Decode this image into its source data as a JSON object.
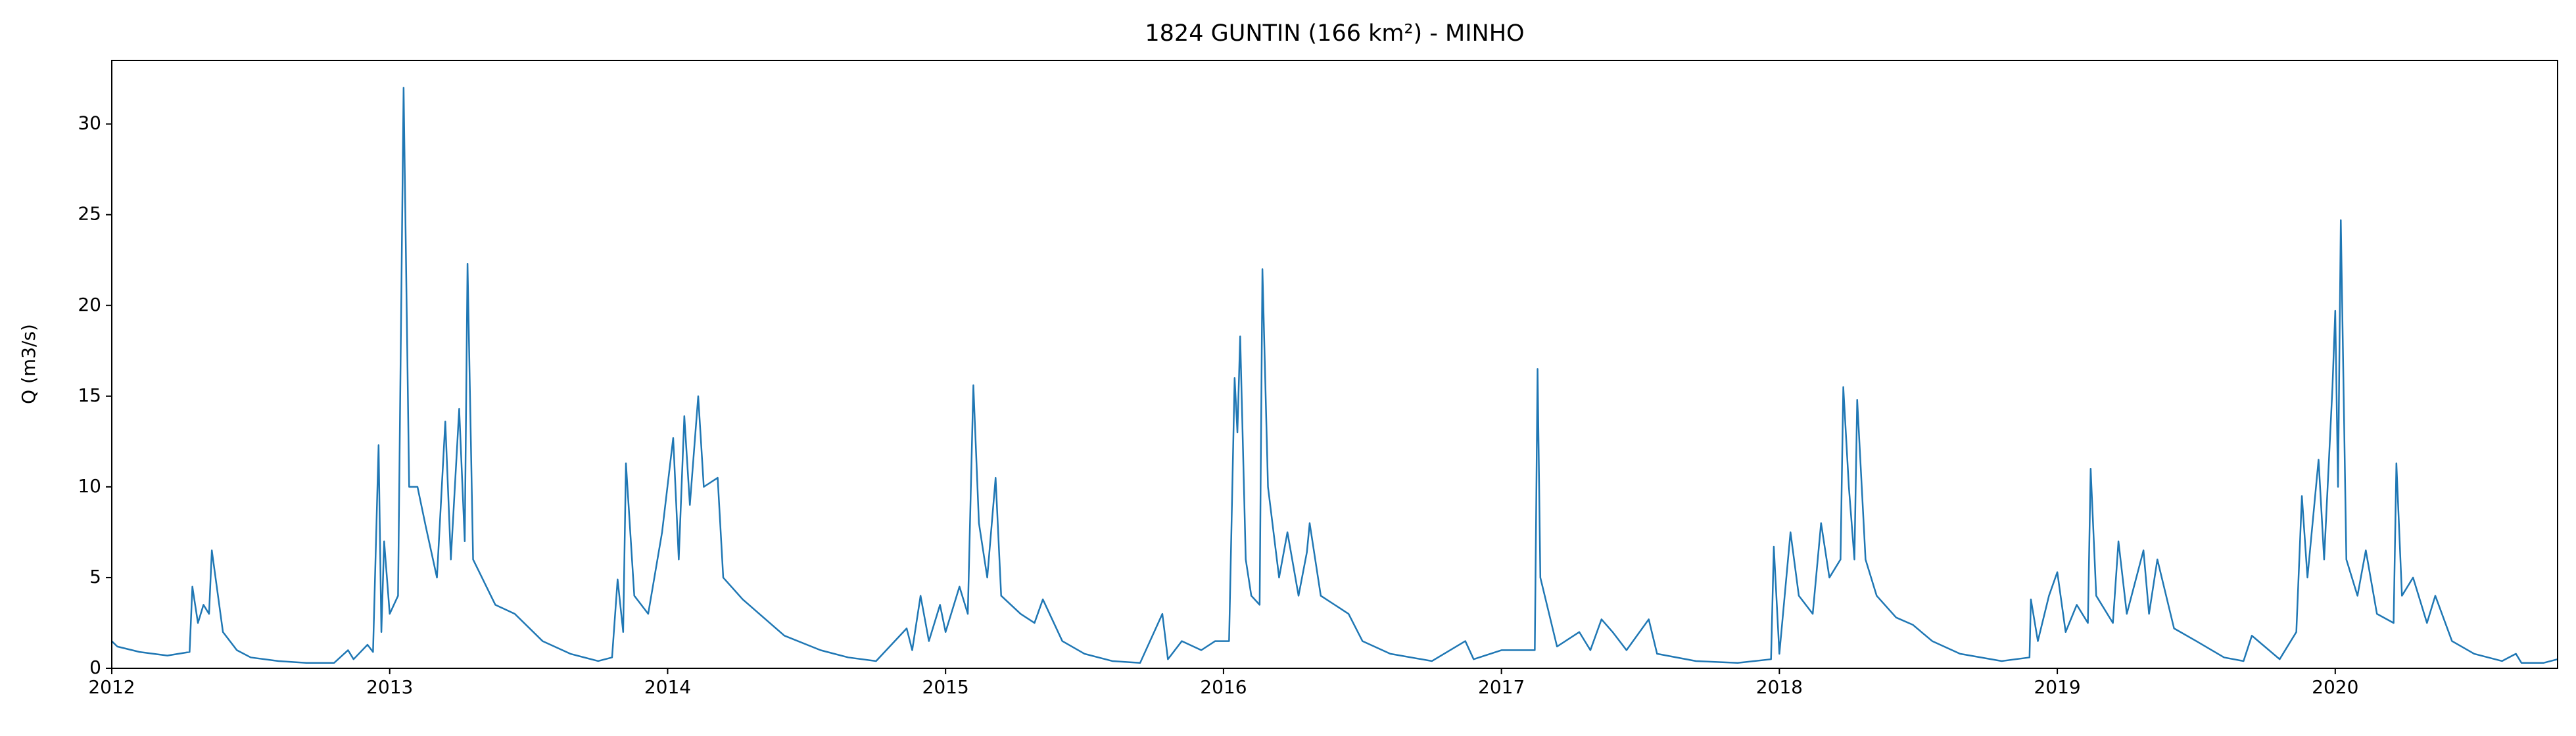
{
  "chart_data": {
    "type": "line",
    "title": "1824 GUNTIN (166 km²) - MINHO",
    "ylabel": "Q (m3/s)",
    "xlim": [
      2012,
      2020.8
    ],
    "xticks": [
      2012,
      2013,
      2014,
      2015,
      2016,
      2017,
      2018,
      2019,
      2020
    ],
    "ylim": [
      0,
      33.5
    ],
    "yticks": [
      0,
      5,
      10,
      15,
      20,
      25,
      30
    ],
    "grid": false,
    "series": [
      {
        "name": "Q",
        "color": "#1f77b4",
        "x": [
          2012,
          2012.02,
          2012.1,
          2012.2,
          2012.28,
          2012.29,
          2012.31,
          2012.33,
          2012.35,
          2012.36,
          2012.4,
          2012.45,
          2012.5,
          2012.6,
          2012.7,
          2012.8,
          2012.85,
          2012.87,
          2012.92,
          2012.94,
          2012.96,
          2012.97,
          2012.98,
          2013.0,
          2013.03,
          2013.05,
          2013.07,
          2013.1,
          2013.13,
          2013.17,
          2013.2,
          2013.22,
          2013.25,
          2013.27,
          2013.28,
          2013.3,
          2013.38,
          2013.45,
          2013.55,
          2013.65,
          2013.75,
          2013.8,
          2013.82,
          2013.84,
          2013.85,
          2013.88,
          2013.93,
          2013.98,
          2014.02,
          2014.04,
          2014.06,
          2014.08,
          2014.11,
          2014.13,
          2014.18,
          2014.2,
          2014.27,
          2014.33,
          2014.42,
          2014.55,
          2014.65,
          2014.75,
          2014.86,
          2014.88,
          2014.9,
          2014.91,
          2014.94,
          2014.98,
          2015.0,
          2015.05,
          2015.08,
          2015.1,
          2015.12,
          2015.15,
          2015.18,
          2015.2,
          2015.27,
          2015.32,
          2015.35,
          2015.42,
          2015.5,
          2015.6,
          2015.7,
          2015.78,
          2015.8,
          2015.85,
          2015.92,
          2015.97,
          2016.02,
          2016.04,
          2016.05,
          2016.06,
          2016.08,
          2016.1,
          2016.13,
          2016.14,
          2016.16,
          2016.2,
          2016.23,
          2016.27,
          2016.3,
          2016.31,
          2016.35,
          2016.4,
          2016.45,
          2016.5,
          2016.6,
          2016.75,
          2016.87,
          2016.9,
          2017.0,
          2017.12,
          2017.13,
          2017.14,
          2017.2,
          2017.28,
          2017.32,
          2017.36,
          2017.4,
          2017.45,
          2017.53,
          2017.56,
          2017.7,
          2017.85,
          2017.97,
          2017.98,
          2018.0,
          2018.04,
          2018.07,
          2018.12,
          2018.15,
          2018.18,
          2018.22,
          2018.23,
          2018.25,
          2018.27,
          2018.28,
          2018.31,
          2018.35,
          2018.42,
          2018.48,
          2018.55,
          2018.65,
          2018.8,
          2018.9,
          2018.905,
          2018.93,
          2018.97,
          2019.0,
          2019.03,
          2019.07,
          2019.11,
          2019.12,
          2019.14,
          2019.2,
          2019.22,
          2019.25,
          2019.31,
          2019.33,
          2019.36,
          2019.42,
          2019.5,
          2019.6,
          2019.67,
          2019.7,
          2019.8,
          2019.86,
          2019.88,
          2019.9,
          2019.94,
          2019.96,
          2019.99,
          2020.0,
          2020.01,
          2020.02,
          2020.04,
          2020.08,
          2020.11,
          2020.15,
          2020.21,
          2020.22,
          2020.24,
          2020.28,
          2020.33,
          2020.36,
          2020.42,
          2020.5,
          2020.6,
          2020.65,
          2020.67,
          2020.75,
          2020.8
        ],
        "values": [
          1.5,
          1.2,
          0.9,
          0.7,
          0.9,
          4.5,
          2.5,
          3.5,
          3,
          6.5,
          2,
          1,
          0.6,
          0.4,
          0.3,
          0.3,
          1,
          0.5,
          1.3,
          0.9,
          12.3,
          2,
          7,
          3,
          4,
          32,
          10,
          10,
          7.8,
          5,
          13.6,
          6,
          14.3,
          7,
          22.3,
          6,
          3.5,
          3,
          1.5,
          0.8,
          0.4,
          0.6,
          4.9,
          2,
          11.3,
          4,
          3,
          7.5,
          12.7,
          6,
          13.9,
          9,
          15,
          10,
          10.5,
          5,
          3.8,
          3,
          1.8,
          1,
          0.6,
          0.4,
          2.2,
          1,
          3,
          4,
          1.5,
          3.5,
          2,
          4.5,
          3,
          15.6,
          8,
          5,
          10.5,
          4,
          3,
          2.5,
          3.8,
          1.5,
          0.8,
          0.4,
          0.3,
          3,
          0.5,
          1.5,
          1,
          1.5,
          1.5,
          16,
          13,
          18.3,
          6,
          4,
          3.5,
          22,
          10,
          5,
          7.5,
          4,
          6.4,
          8,
          4,
          3.5,
          3,
          1.5,
          0.8,
          0.4,
          1.5,
          0.5,
          1,
          1,
          16.5,
          5,
          1.2,
          2,
          1,
          2.7,
          2,
          1,
          2.7,
          0.8,
          0.4,
          0.3,
          0.5,
          6.7,
          0.8,
          7.5,
          4,
          3,
          8,
          5,
          6,
          15.5,
          10,
          6,
          14.8,
          6,
          4,
          2.8,
          2.4,
          1.5,
          0.8,
          0.4,
          0.6,
          3.8,
          1.5,
          4,
          5.3,
          2,
          3.5,
          2.5,
          11,
          4,
          2.5,
          7,
          3,
          6.5,
          3,
          6,
          2.2,
          1.5,
          0.6,
          0.4,
          1.8,
          0.5,
          2,
          9.5,
          5,
          11.5,
          6,
          15.5,
          19.7,
          10,
          24.7,
          6,
          4,
          6.5,
          3,
          2.5,
          11.3,
          4,
          5,
          2.5,
          4,
          1.5,
          0.8,
          0.4,
          0.8,
          0.3,
          0.3,
          0.5
        ]
      }
    ]
  }
}
